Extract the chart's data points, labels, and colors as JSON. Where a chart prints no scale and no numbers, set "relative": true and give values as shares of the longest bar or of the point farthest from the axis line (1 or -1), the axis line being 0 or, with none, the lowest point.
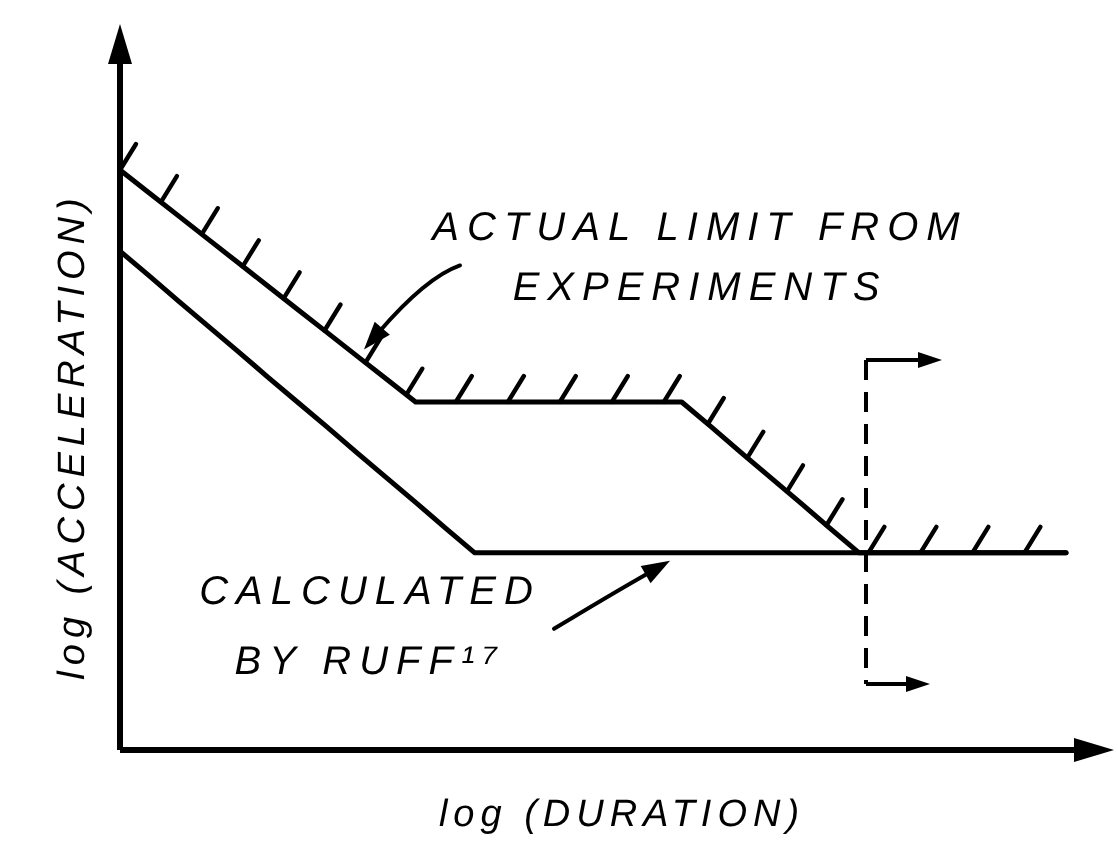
{
  "chart_data": {
    "type": "line",
    "relative": true,
    "xlabel": "log (DURATION)",
    "ylabel": "log (ACCELERATION)",
    "categories": [
      null,
      null,
      null,
      null,
      null,
      null,
      null,
      null,
      null,
      null,
      null,
      null,
      null,
      null,
      null,
      null,
      null,
      null,
      null,
      null,
      null,
      null,
      null,
      null,
      null,
      null,
      null,
      null,
      null,
      null,
      null,
      null,
      null
    ],
    "series": [
      {
        "color": "#000000",
        "values": [
          1,
          0.96,
          0.92,
          0.88,
          0.84,
          0.8,
          0.76,
          0.72,
          0.68,
          0.64,
          0.6,
          0.6,
          0.6,
          0.6,
          0.6,
          0.6,
          0.6,
          0.6,
          0.6,
          0.6,
          0.557,
          0.513,
          0.47,
          0.427,
          0.383,
          0.34,
          0.34,
          0.34,
          0.34,
          0.34,
          0.34,
          0.34,
          0.34
        ]
      },
      {
        "color": "#000000",
        "values": [
          0.86,
          0.817,
          0.773,
          0.73,
          0.687,
          0.643,
          0.6,
          0.557,
          0.513,
          0.47,
          0.427,
          0.383,
          0.34,
          0.34,
          0.34,
          0.34,
          0.34,
          0.34,
          0.34,
          0.34,
          0.34,
          0.34,
          0.34,
          0.34,
          0.34,
          0.34,
          0.34,
          0.34,
          0.34,
          0.34,
          0.34,
          0.34,
          0.34
        ]
      }
    ],
    "annotations": [
      "ACTUAL LIMIT FROM EXPERIMENTS",
      "CALCULATED BY RUFF¹⁷"
    ]
  }
}
